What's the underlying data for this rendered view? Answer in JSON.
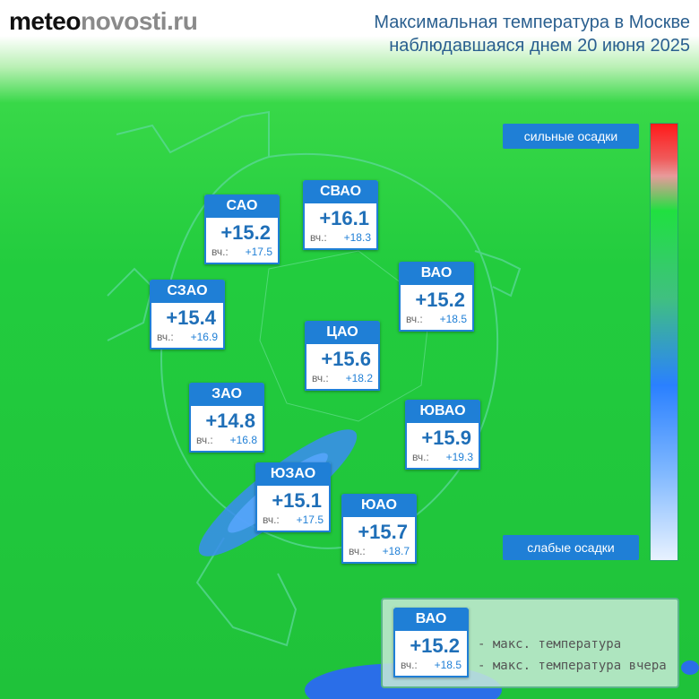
{
  "header": {
    "logo": [
      "meteo",
      "novosti.ru"
    ],
    "title": [
      "Максимальная температура в Москве",
      "наблюдавшаяся днем 20 июня 2025"
    ]
  },
  "districts": [
    {
      "name": "САО",
      "temp": "+15.2",
      "prev_label": "вч.:",
      "prev": "+17.5"
    },
    {
      "name": "СВАО",
      "temp": "+16.1",
      "prev_label": "вч.:",
      "prev": "+18.3"
    },
    {
      "name": "ВАО",
      "temp": "+15.2",
      "prev_label": "вч.:",
      "prev": "+18.5"
    },
    {
      "name": "СЗАО",
      "temp": "+15.4",
      "prev_label": "вч.:",
      "prev": "+16.9"
    },
    {
      "name": "ЦАО",
      "temp": "+15.6",
      "prev_label": "вч.:",
      "prev": "+18.2"
    },
    {
      "name": "ЗАО",
      "temp": "+14.8",
      "prev_label": "вч.:",
      "prev": "+16.8"
    },
    {
      "name": "ЮВАО",
      "temp": "+15.9",
      "prev_label": "вч.:",
      "prev": "+19.3"
    },
    {
      "name": "ЮЗАО",
      "temp": "+15.1",
      "prev_label": "вч.:",
      "prev": "+17.5"
    },
    {
      "name": "ЮАО",
      "temp": "+15.7",
      "prev_label": "вч.:",
      "prev": "+18.7"
    }
  ],
  "scale": {
    "top": "сильные осадки",
    "bottom": "слабые осадки"
  },
  "legend": {
    "card": {
      "name": "ВАО",
      "temp": "+15.2",
      "prev_label": "вч.:",
      "prev": "+18.5"
    },
    "descriptions": [
      "- макс. температура",
      "- макс. температура вчера"
    ]
  }
}
